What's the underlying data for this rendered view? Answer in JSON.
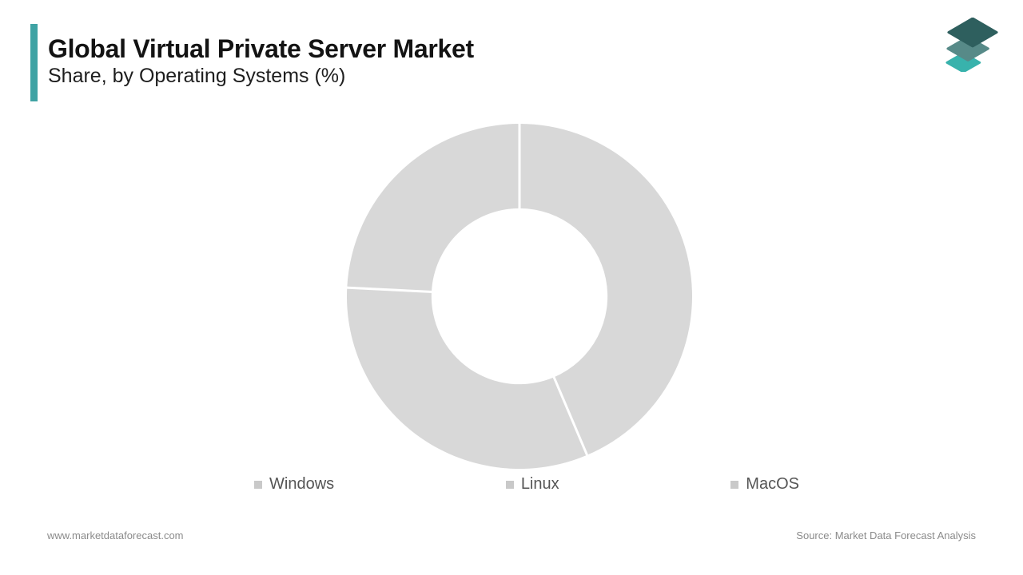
{
  "header": {
    "title": "Global Virtual Private Server Market",
    "subtitle": "Share, by Operating Systems (%)",
    "accent_color": "#3fa3a4"
  },
  "logo": {
    "label": "layered-diamonds-logo",
    "layer_colors": [
      "#38b2ac",
      "#578a88",
      "#2e5f5e"
    ]
  },
  "chart_data": {
    "type": "pie",
    "variant": "donut",
    "title": "Global Virtual Private Server Market Share, by Operating Systems (%)",
    "categories": [
      "Windows",
      "Linux",
      "MacOS"
    ],
    "values": [
      43.6,
      32.2,
      24.2
    ],
    "unit": "%",
    "start_angle_deg": 0,
    "direction": "clockwise",
    "inner_radius_ratio": 0.51,
    "segment_color": "#d8d8d8",
    "separator_color": "#ffffff",
    "legend_position": "bottom",
    "legend_marker_color": "#c9c9c9"
  },
  "footer": {
    "website": "www.marketdataforecast.com",
    "source": "Source: Market Data Forecast Analysis"
  }
}
